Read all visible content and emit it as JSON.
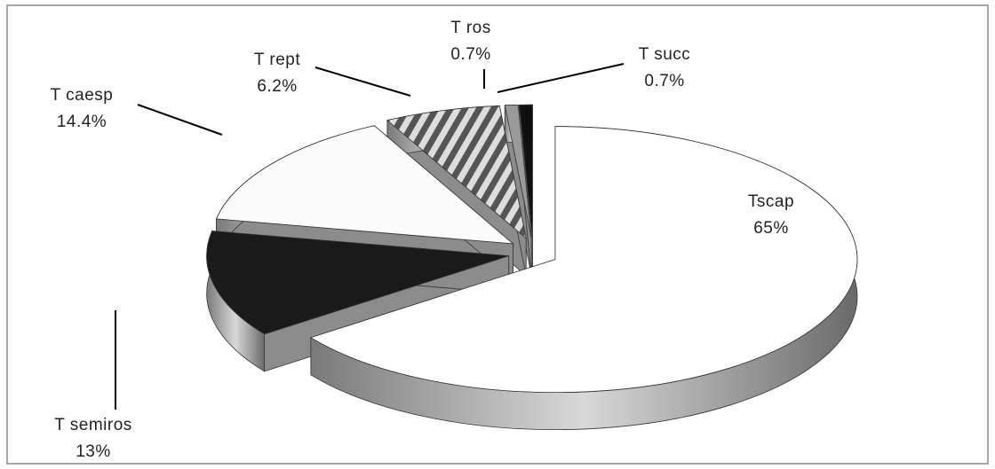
{
  "chart_data": {
    "type": "pie",
    "categories": [
      "Tscap",
      "T semiros",
      "T caesp",
      "T rept",
      "T ros",
      "T succ"
    ],
    "values": [
      65,
      13,
      14.4,
      6.2,
      0.7,
      0.7
    ],
    "value_labels": [
      "65%",
      "13%",
      "14.4%",
      "6.2%",
      "0.7%",
      "0.7%"
    ],
    "colors": [
      "#ffffff",
      "#1a1a1a",
      "#fbfbfb",
      "#8a8a8a",
      "#9a9a9a",
      "#111111"
    ]
  }
}
